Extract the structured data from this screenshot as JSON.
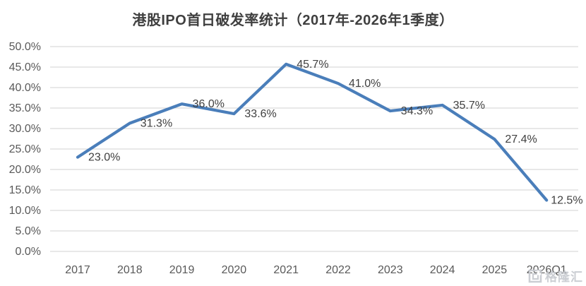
{
  "chart_data": {
    "type": "line",
    "title": "港股IPO首日破发率统计（2017年-2026年1季度）",
    "categories": [
      "2017",
      "2018",
      "2019",
      "2020",
      "2021",
      "2022",
      "2023",
      "2024",
      "2025",
      "2026Q1"
    ],
    "values": [
      23.0,
      31.3,
      36.0,
      33.6,
      45.7,
      41.0,
      34.3,
      35.7,
      27.4,
      12.5
    ],
    "point_labels": [
      "23.0%",
      "31.3%",
      "36.0%",
      "33.6%",
      "45.7%",
      "41.0%",
      "34.3%",
      "35.7%",
      "27.4%",
      "12.5%"
    ],
    "xlabel": "",
    "ylabel": "",
    "ylim": [
      0,
      50
    ],
    "ytick_labels": [
      "0.0%",
      "5.0%",
      "10.0%",
      "15.0%",
      "20.0%",
      "25.0%",
      "30.0%",
      "35.0%",
      "40.0%",
      "45.0%",
      "50.0%"
    ],
    "grid": true,
    "legend": "none",
    "line_color": "#4A7EBA",
    "gridline_color": "#D9D9D9",
    "data_label_color": "#404040",
    "axis_label_color": "#595959"
  },
  "watermark": {
    "text": "格隆汇"
  }
}
